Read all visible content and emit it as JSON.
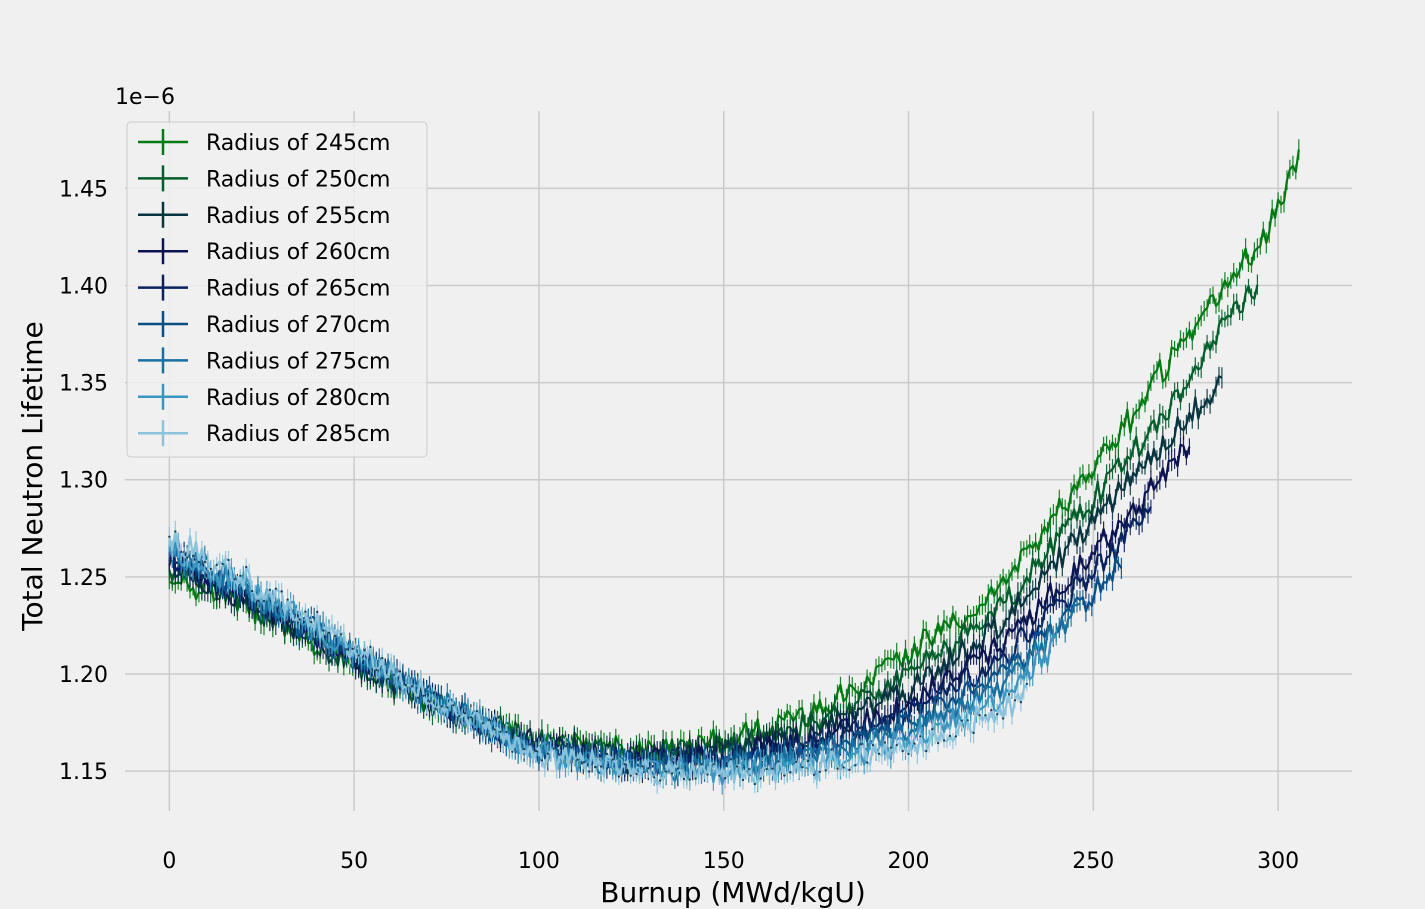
{
  "chart_data": {
    "type": "line",
    "xlabel": "Burnup (MWd/kgU)",
    "ylabel": "Total Neutron Lifetime",
    "y_offset_label": "1e−6",
    "xlim": [
      -12,
      320
    ],
    "ylim": [
      1.1295,
      1.4898
    ],
    "xticks": [
      0,
      50,
      100,
      150,
      200,
      250,
      300
    ],
    "xtick_labels": [
      "0",
      "50",
      "100",
      "150",
      "200",
      "250",
      "300"
    ],
    "yticks": [
      1.15,
      1.2,
      1.25,
      1.3,
      1.35,
      1.4,
      1.45
    ],
    "ytick_labels": [
      "1.15",
      "1.20",
      "1.25",
      "1.30",
      "1.35",
      "1.40",
      "1.45"
    ],
    "grid": true,
    "legend_position": "top-left",
    "series": [
      {
        "name": "Radius of 245cm",
        "color": "#007a12",
        "x": [
          0,
          25,
          50,
          75,
          100,
          125,
          150,
          175,
          200,
          225,
          250,
          265,
          275,
          285,
          295,
          306
        ],
        "y": [
          1.252,
          1.232,
          1.205,
          1.18,
          1.165,
          1.16,
          1.165,
          1.18,
          1.21,
          1.245,
          1.305,
          1.345,
          1.375,
          1.4,
          1.42,
          1.468
        ]
      },
      {
        "name": "Radius of 250cm",
        "color": "#005e2a",
        "x": [
          0,
          25,
          50,
          75,
          100,
          125,
          150,
          175,
          200,
          225,
          250,
          265,
          275,
          285,
          295
        ],
        "y": [
          1.254,
          1.233,
          1.206,
          1.181,
          1.164,
          1.158,
          1.162,
          1.175,
          1.2,
          1.235,
          1.29,
          1.325,
          1.35,
          1.378,
          1.4
        ]
      },
      {
        "name": "Radius of 255cm",
        "color": "#08343f",
        "x": [
          0,
          25,
          50,
          75,
          100,
          125,
          150,
          175,
          200,
          225,
          250,
          265,
          275,
          285
        ],
        "y": [
          1.256,
          1.234,
          1.207,
          1.182,
          1.163,
          1.156,
          1.159,
          1.17,
          1.192,
          1.225,
          1.278,
          1.31,
          1.332,
          1.352
        ]
      },
      {
        "name": "Radius of 260cm",
        "color": "#0b1451",
        "x": [
          0,
          25,
          50,
          75,
          100,
          125,
          150,
          175,
          200,
          225,
          250,
          265,
          276
        ],
        "y": [
          1.258,
          1.236,
          1.208,
          1.182,
          1.162,
          1.155,
          1.157,
          1.166,
          1.185,
          1.215,
          1.262,
          1.292,
          1.318
        ]
      },
      {
        "name": "Radius of 265cm",
        "color": "#08215f",
        "x": [
          0,
          25,
          50,
          75,
          100,
          125,
          150,
          175,
          200,
          225,
          250,
          266
        ],
        "y": [
          1.26,
          1.237,
          1.209,
          1.182,
          1.161,
          1.154,
          1.155,
          1.163,
          1.18,
          1.207,
          1.252,
          1.285
        ]
      },
      {
        "name": "Radius of 270cm",
        "color": "#0a4e86",
        "x": [
          0,
          25,
          50,
          75,
          100,
          125,
          150,
          175,
          200,
          225,
          250,
          258
        ],
        "y": [
          1.262,
          1.238,
          1.21,
          1.182,
          1.16,
          1.153,
          1.153,
          1.16,
          1.175,
          1.2,
          1.242,
          1.258
        ]
      },
      {
        "name": "Radius of 275cm",
        "color": "#17709f",
        "x": [
          0,
          25,
          50,
          75,
          100,
          125,
          150,
          175,
          200,
          225,
          247
        ],
        "y": [
          1.264,
          1.239,
          1.211,
          1.183,
          1.16,
          1.152,
          1.152,
          1.157,
          1.17,
          1.193,
          1.235
        ]
      },
      {
        "name": "Radius of 280cm",
        "color": "#3a96c0",
        "x": [
          0,
          25,
          50,
          75,
          100,
          125,
          150,
          175,
          200,
          225,
          240
        ],
        "y": [
          1.266,
          1.24,
          1.212,
          1.183,
          1.159,
          1.151,
          1.15,
          1.154,
          1.166,
          1.187,
          1.215
        ]
      },
      {
        "name": "Radius of 285cm",
        "color": "#8cc3dc",
        "x": [
          0,
          25,
          50,
          75,
          100,
          125,
          150,
          175,
          200,
          225,
          232
        ],
        "y": [
          1.27,
          1.243,
          1.213,
          1.184,
          1.159,
          1.15,
          1.149,
          1.152,
          1.163,
          1.182,
          1.19
        ]
      }
    ]
  }
}
